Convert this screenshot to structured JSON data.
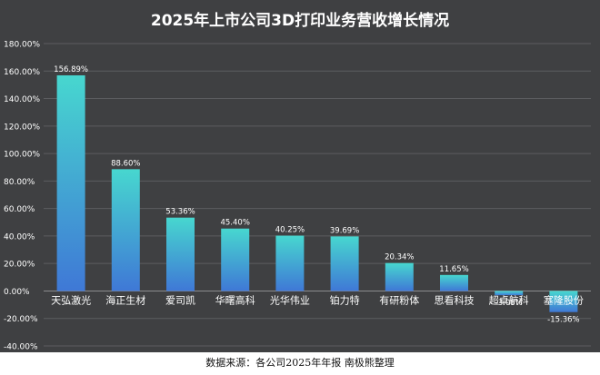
{
  "chart_data": {
    "type": "bar",
    "title": "2025年上市公司3D打印业务营收增长情况",
    "categories": [
      "天弘激光",
      "海正生材",
      "爱司凯",
      "华曙高科",
      "光华伟业",
      "铂力特",
      "有研粉体",
      "思看科技",
      "超卓航科",
      "塞隆股份"
    ],
    "values": [
      156.89,
      88.6,
      53.36,
      45.4,
      40.25,
      39.69,
      20.34,
      11.65,
      -3.08,
      -15.36
    ],
    "value_labels": [
      "156.89%",
      "88.60%",
      "53.36%",
      "45.40%",
      "40.25%",
      "39.69%",
      "20.34%",
      "11.65%",
      "-3.08%",
      "-15.36%"
    ],
    "y_ticks": [
      180,
      160,
      140,
      120,
      100,
      80,
      60,
      40,
      20,
      0,
      -20,
      -40
    ],
    "y_tick_labels": [
      "180.00%",
      "160.00%",
      "140.00%",
      "120.00%",
      "100.00%",
      "80.00%",
      "60.00%",
      "40.00%",
      "20.00%",
      "0.00%",
      "-20.00%",
      "-40.00%"
    ],
    "ylim": [
      -40,
      180
    ],
    "grid": true,
    "colors": {
      "background": "#3f4042",
      "bar_top": "#47d7cf",
      "bar_bottom": "#3f78d6",
      "grid": "#5c5d60",
      "text": "#ffffff"
    }
  },
  "source_text": "数据来源：各公司2025年年报  南极熊整理"
}
